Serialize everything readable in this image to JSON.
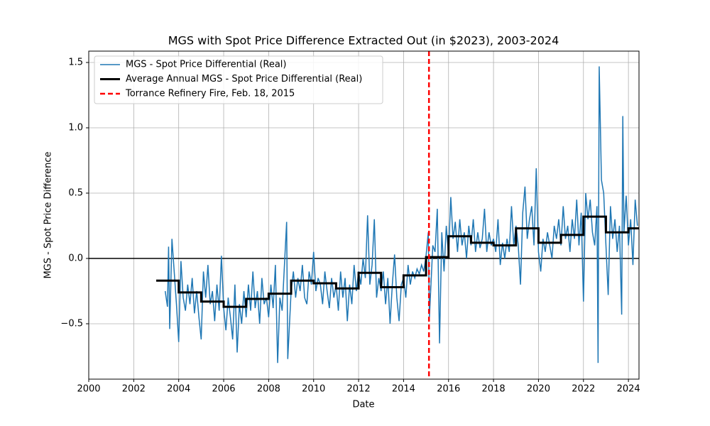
{
  "chart_data": {
    "type": "line",
    "title": "MGS with Spot Price Difference Extracted Out (in $2023), 2003-2024",
    "x_label": "Date",
    "y_label": "MGS - Spot Price Difference",
    "xlim": [
      2000,
      2024.47
    ],
    "ylim": [
      -0.924,
      1.587
    ],
    "xticks": [
      2000,
      2002,
      2004,
      2006,
      2008,
      2010,
      2012,
      2014,
      2016,
      2018,
      2020,
      2022,
      2024
    ],
    "yticks": [
      {
        "value": -0.5,
        "label": "−0.5"
      },
      {
        "value": 0,
        "label": "0.0"
      },
      0.5,
      {
        "value": 1,
        "label": "1.0"
      },
      1.5
    ],
    "grid": true,
    "legend": "upper left",
    "hline": 0,
    "vline": {
      "name": "Torrance Refinery Fire, Feb. 18, 2015",
      "x": 2015.13,
      "color": "#ff0000"
    },
    "series": [
      {
        "name": "MGS - Spot Price Differential (Real)",
        "color": "#1f77b4",
        "x": [
          2003.4,
          2003.5,
          2003.55,
          2003.6,
          2003.7,
          2003.8,
          2003.9,
          2004.0,
          2004.1,
          2004.2,
          2004.3,
          2004.4,
          2004.5,
          2004.6,
          2004.7,
          2004.8,
          2004.9,
          2005.0,
          2005.1,
          2005.2,
          2005.3,
          2005.4,
          2005.5,
          2005.6,
          2005.7,
          2005.8,
          2005.9,
          2006.0,
          2006.1,
          2006.2,
          2006.3,
          2006.4,
          2006.5,
          2006.6,
          2006.7,
          2006.8,
          2006.9,
          2007.0,
          2007.1,
          2007.2,
          2007.3,
          2007.4,
          2007.5,
          2007.6,
          2007.7,
          2007.8,
          2007.9,
          2008.0,
          2008.1,
          2008.2,
          2008.3,
          2008.4,
          2008.5,
          2008.6,
          2008.8,
          2008.85,
          2009.0,
          2009.1,
          2009.2,
          2009.3,
          2009.4,
          2009.5,
          2009.6,
          2009.7,
          2009.8,
          2009.9,
          2010.0,
          2010.1,
          2010.2,
          2010.3,
          2010.4,
          2010.5,
          2010.6,
          2010.7,
          2010.8,
          2010.9,
          2011.0,
          2011.1,
          2011.2,
          2011.3,
          2011.4,
          2011.5,
          2011.6,
          2011.7,
          2011.8,
          2011.9,
          2012.0,
          2012.1,
          2012.2,
          2012.3,
          2012.4,
          2012.5,
          2012.6,
          2012.7,
          2012.8,
          2012.9,
          2013.0,
          2013.1,
          2013.2,
          2013.3,
          2013.4,
          2013.5,
          2013.6,
          2013.7,
          2013.8,
          2013.9,
          2014.0,
          2014.1,
          2014.2,
          2014.3,
          2014.4,
          2014.5,
          2014.6,
          2014.7,
          2014.8,
          2014.9,
          2015.0,
          2015.1,
          2015.15,
          2015.3,
          2015.4,
          2015.5,
          2015.6,
          2015.7,
          2015.8,
          2015.9,
          2016.0,
          2016.1,
          2016.2,
          2016.3,
          2016.4,
          2016.5,
          2016.6,
          2016.7,
          2016.8,
          2016.9,
          2017.0,
          2017.1,
          2017.2,
          2017.3,
          2017.4,
          2017.5,
          2017.6,
          2017.7,
          2017.8,
          2017.9,
          2018.0,
          2018.1,
          2018.2,
          2018.3,
          2018.4,
          2018.5,
          2018.6,
          2018.7,
          2018.8,
          2018.9,
          2019.0,
          2019.1,
          2019.2,
          2019.3,
          2019.4,
          2019.5,
          2019.6,
          2019.7,
          2019.8,
          2019.9,
          2020.0,
          2020.1,
          2020.2,
          2020.3,
          2020.4,
          2020.5,
          2020.6,
          2020.7,
          2020.8,
          2020.9,
          2021.0,
          2021.1,
          2021.2,
          2021.3,
          2021.4,
          2021.5,
          2021.6,
          2021.7,
          2021.8,
          2021.9,
          2022.0,
          2022.1,
          2022.2,
          2022.3,
          2022.4,
          2022.5,
          2022.6,
          2022.65,
          2022.7,
          2022.8,
          2022.9,
          2023.0,
          2023.1,
          2023.2,
          2023.3,
          2023.4,
          2023.5,
          2023.6,
          2023.7,
          2023.75,
          2023.8,
          2023.9,
          2024.0,
          2024.1,
          2024.2,
          2024.3,
          2024.4
        ],
        "values": [
          -0.25,
          -0.37,
          0.09,
          -0.54,
          0.15,
          -0.1,
          -0.35,
          -0.64,
          -0.02,
          -0.3,
          -0.4,
          -0.2,
          -0.35,
          -0.15,
          -0.42,
          -0.25,
          -0.45,
          -0.62,
          -0.1,
          -0.3,
          -0.05,
          -0.35,
          -0.25,
          -0.48,
          -0.2,
          -0.4,
          0.02,
          -0.38,
          -0.55,
          -0.3,
          -0.45,
          -0.62,
          -0.2,
          -0.72,
          -0.35,
          -0.5,
          -0.25,
          -0.45,
          -0.2,
          -0.4,
          -0.1,
          -0.38,
          -0.25,
          -0.5,
          -0.15,
          -0.35,
          -0.3,
          -0.45,
          -0.2,
          -0.38,
          -0.05,
          -0.8,
          -0.3,
          -0.4,
          0.28,
          -0.77,
          -0.25,
          -0.1,
          -0.3,
          -0.15,
          -0.25,
          -0.05,
          -0.3,
          -0.35,
          -0.1,
          -0.2,
          0.05,
          -0.25,
          -0.15,
          -0.2,
          -0.35,
          -0.1,
          -0.25,
          -0.38,
          -0.15,
          -0.3,
          -0.2,
          -0.4,
          -0.1,
          -0.3,
          -0.15,
          -0.48,
          -0.2,
          -0.35,
          -0.05,
          -0.25,
          -0.1,
          -0.2,
          0.0,
          -0.15,
          0.33,
          -0.2,
          -0.05,
          0.3,
          -0.3,
          -0.15,
          -0.25,
          -0.1,
          -0.35,
          -0.15,
          -0.5,
          -0.2,
          0.03,
          -0.3,
          -0.48,
          -0.2,
          -0.15,
          -0.3,
          -0.05,
          -0.2,
          -0.1,
          -0.15,
          -0.08,
          -0.12,
          -0.05,
          -0.1,
          0.02,
          0.2,
          -0.45,
          0.1,
          0.05,
          0.38,
          -0.65,
          0.2,
          -0.1,
          0.25,
          0.02,
          0.47,
          0.15,
          0.28,
          0.05,
          0.3,
          0.1,
          0.2,
          0.0,
          0.25,
          0.1,
          0.3,
          0.05,
          0.2,
          0.08,
          0.15,
          0.38,
          0.05,
          0.2,
          0.1,
          0.15,
          0.05,
          0.3,
          -0.05,
          0.12,
          0.0,
          0.15,
          0.05,
          0.4,
          0.1,
          0.25,
          0.1,
          -0.2,
          0.35,
          0.55,
          0.15,
          0.3,
          0.4,
          0.1,
          0.69,
          0.05,
          -0.1,
          0.15,
          0.05,
          0.2,
          0.1,
          0.0,
          0.25,
          0.15,
          0.3,
          0.1,
          0.4,
          0.15,
          0.25,
          0.05,
          0.3,
          0.15,
          0.45,
          0.1,
          0.35,
          -0.33,
          0.5,
          0.3,
          0.45,
          0.2,
          0.1,
          0.4,
          -0.8,
          1.47,
          0.6,
          0.5,
          0.1,
          -0.28,
          0.4,
          0.15,
          0.3,
          0.05,
          0.25,
          -0.43,
          1.09,
          0.2,
          0.48,
          0.1,
          0.3,
          -0.05,
          0.45,
          0.25
        ]
      },
      {
        "name": "Average Annual MGS - Spot Price Differential (Real)",
        "color": "#000000",
        "drawstyle": "steps-post",
        "x": [
          2003,
          2004,
          2005,
          2006,
          2007,
          2008,
          2009,
          2010,
          2011,
          2012,
          2013,
          2014,
          2015,
          2016,
          2017,
          2018,
          2019,
          2020,
          2021,
          2022,
          2023,
          2024
        ],
        "values": [
          -0.17,
          -0.26,
          -0.33,
          -0.37,
          -0.31,
          -0.27,
          -0.17,
          -0.19,
          -0.23,
          -0.11,
          -0.22,
          -0.13,
          0.01,
          0.17,
          0.12,
          0.1,
          0.23,
          0.12,
          0.18,
          0.32,
          0.2,
          0.23
        ]
      }
    ]
  }
}
